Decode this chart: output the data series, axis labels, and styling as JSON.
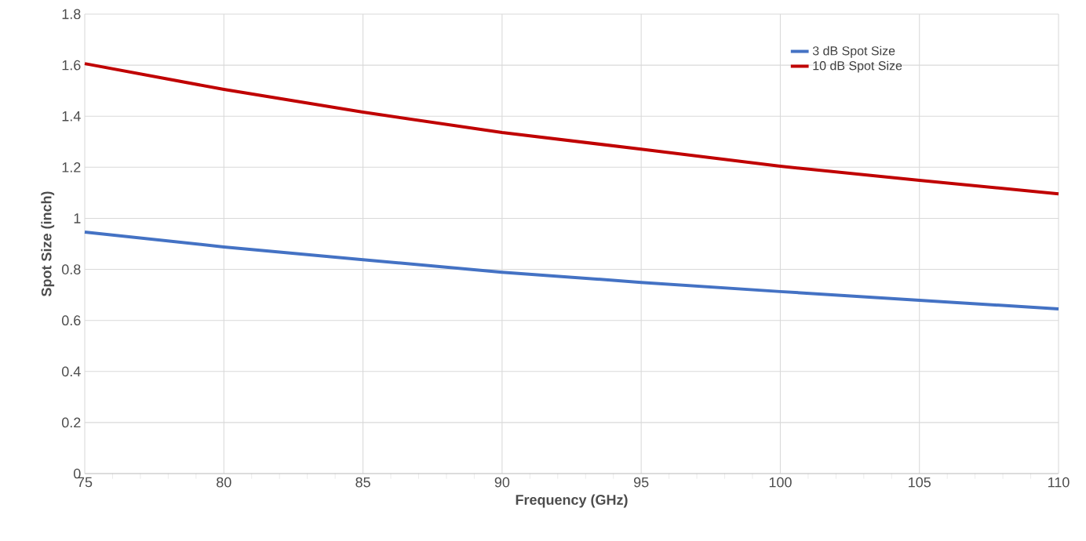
{
  "chart_data": {
    "type": "line",
    "xlabel": "Frequency (GHz)",
    "ylabel": "Spot Size (inch)",
    "x": [
      75,
      80,
      85,
      90,
      95,
      100,
      105,
      110
    ],
    "series": [
      {
        "name": "3 dB Spot Size",
        "color": "#4472c4",
        "values": [
          0.946,
          0.888,
          0.838,
          0.789,
          0.749,
          0.713,
          0.679,
          0.645
        ]
      },
      {
        "name": "10 dB Spot Size",
        "color": "#c00000",
        "values": [
          1.606,
          1.505,
          1.416,
          1.336,
          1.271,
          1.204,
          1.149,
          1.096
        ]
      }
    ],
    "xlim": [
      75,
      110
    ],
    "xticks": [
      75,
      80,
      85,
      90,
      95,
      100,
      105,
      110
    ],
    "ylim": [
      0,
      1.8
    ],
    "yticks": [
      0,
      {
        "value": 0.2,
        "label": "0.2"
      },
      {
        "value": 0.4,
        "label": "0.4"
      },
      {
        "value": 0.6,
        "label": "0.6"
      },
      {
        "value": 0.8,
        "label": "0.8"
      },
      1,
      {
        "value": 1.2,
        "label": "1.2"
      },
      {
        "value": 1.4,
        "label": "1.4"
      },
      {
        "value": 1.6,
        "label": "1.6"
      },
      {
        "value": 1.8,
        "label": "1.8"
      }
    ],
    "grid": true,
    "legend": "top right",
    "marker": "none",
    "line_style": "solid"
  }
}
